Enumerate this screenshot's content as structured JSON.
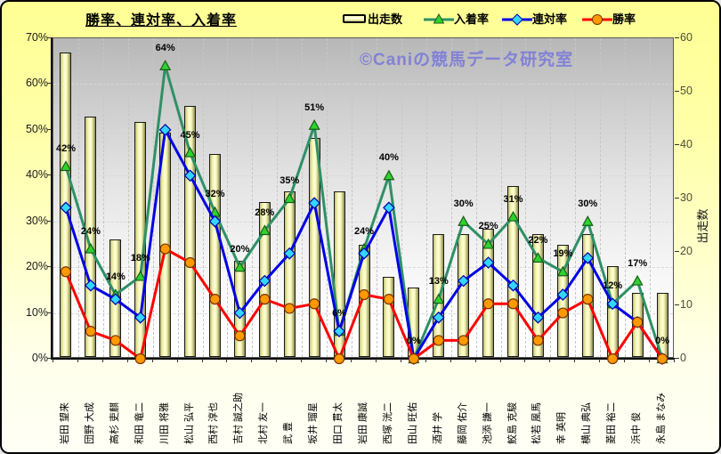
{
  "watermark": "©Caniの競馬データ研究室",
  "chart_data": {
    "type": "bar",
    "combo": "bar+line",
    "title": "勝率、連対率、入着率",
    "categories": [
      "岩田 望来",
      "団野 大成",
      "高杉 吏麒",
      "和田 竜二",
      "川田 将雅",
      "松山 弘平",
      "西村 淳也",
      "吉村 誠之助",
      "北村 友一",
      "武 豊",
      "坂井 瑠星",
      "田口 貫太",
      "岩田 康誠",
      "西塚 洸二",
      "田山 旺佑",
      "酒井 学",
      "藤岡 佑介",
      "池添 謙一",
      "鮫島 克駿",
      "松若 風馬",
      "幸 英明",
      "横山 典弘",
      "菱田 裕二",
      "浜中 俊",
      "永島 まなみ"
    ],
    "series": [
      {
        "name": "出走数",
        "type": "bar",
        "axis": "right",
        "color": "#ffffd6",
        "values": [
          57,
          45,
          22,
          44,
          42,
          47,
          38,
          18,
          29,
          31,
          41,
          31,
          21,
          15,
          13,
          23,
          23,
          24,
          32,
          23,
          21,
          23,
          17,
          12,
          12
        ]
      },
      {
        "name": "入着率",
        "type": "line",
        "marker": "triangle",
        "axis": "left",
        "unit": "%",
        "color": "#2f9066",
        "marker_fill": "#2ed32e",
        "marker_edge": "#1a5c1a",
        "values": [
          42,
          24,
          14,
          18,
          64,
          45,
          32,
          20,
          28,
          35,
          51,
          6,
          24,
          40,
          0,
          13,
          30,
          25,
          31,
          22,
          19,
          30,
          12,
          17,
          0
        ],
        "point_labels": [
          "42%",
          "24%",
          "14%",
          "18%",
          "64%",
          "45%",
          "32%",
          "20%",
          "28%",
          "35%",
          "51%",
          "6%",
          "24%",
          "40%",
          "0%",
          "13%",
          "30%",
          "25%",
          "31%",
          "22%",
          "19%",
          "30%",
          "12%",
          "17%",
          "0%"
        ]
      },
      {
        "name": "連対率",
        "type": "line",
        "marker": "diamond",
        "axis": "left",
        "unit": "%",
        "color": "#0000e6",
        "marker_fill": "#33d6ff",
        "marker_edge": "#0000aa",
        "values": [
          33,
          16,
          13,
          9,
          50,
          40,
          30,
          10,
          17,
          23,
          34,
          6,
          23,
          33,
          0,
          9,
          17,
          21,
          16,
          9,
          14,
          22,
          12,
          8,
          0
        ]
      },
      {
        "name": "勝率",
        "type": "line",
        "marker": "circle",
        "axis": "left",
        "unit": "%",
        "color": "#ff0000",
        "marker_fill": "#ff9900",
        "marker_edge": "#7a3300",
        "values": [
          19,
          6,
          4,
          0,
          24,
          21,
          13,
          5,
          13,
          11,
          12,
          0,
          14,
          13,
          0,
          4,
          4,
          12,
          12,
          4,
          10,
          13,
          0,
          8,
          0
        ]
      }
    ],
    "left_axis": {
      "min": 0,
      "max": 70,
      "step": 10,
      "format": "percent",
      "ticks": [
        "0%",
        "10%",
        "20%",
        "30%",
        "40%",
        "50%",
        "60%",
        "70%"
      ]
    },
    "right_axis": {
      "min": 0,
      "max": 60,
      "step": 10,
      "label": "出走数",
      "ticks": [
        "0",
        "10",
        "20",
        "30",
        "40",
        "50",
        "60"
      ]
    },
    "grid": true,
    "legend_position": "top"
  }
}
